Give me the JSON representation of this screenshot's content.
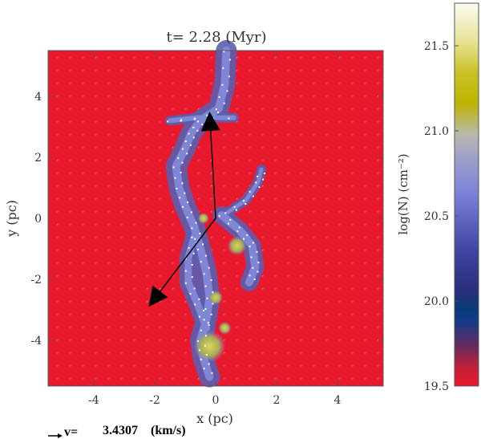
{
  "chart_data": {
    "type": "heatmap",
    "title": "t= 2.28 (Myr)",
    "xlabel": "x (pc)",
    "ylabel": "y (pc)",
    "xlim": [
      -5.5,
      5.5
    ],
    "ylim": [
      -5.5,
      5.5
    ],
    "xticks": [
      -4,
      -2,
      0,
      2,
      4
    ],
    "yticks": [
      -4,
      -2,
      0,
      2,
      4
    ],
    "colorbar": {
      "label": "log(N) (cm⁻²)",
      "range": [
        19.5,
        21.75
      ],
      "ticks": [
        19.5,
        20.0,
        20.5,
        21.0,
        21.5
      ]
    },
    "velocity_legend": {
      "label": "v=",
      "value": "3.4307",
      "unit": "(km/s)"
    },
    "arrows": [
      {
        "from": [
          0.0,
          0.0
        ],
        "to": [
          -0.2,
          3.5
        ]
      },
      {
        "from": [
          0.0,
          0.0
        ],
        "to": [
          -2.2,
          -2.9
        ]
      }
    ],
    "colors": {
      "background": "#e8192c",
      "filament_low": "#5a5fb0",
      "filament_mid": "#7f86d6",
      "filament_high": "#c7cc3a",
      "arrow": "#000000"
    }
  }
}
